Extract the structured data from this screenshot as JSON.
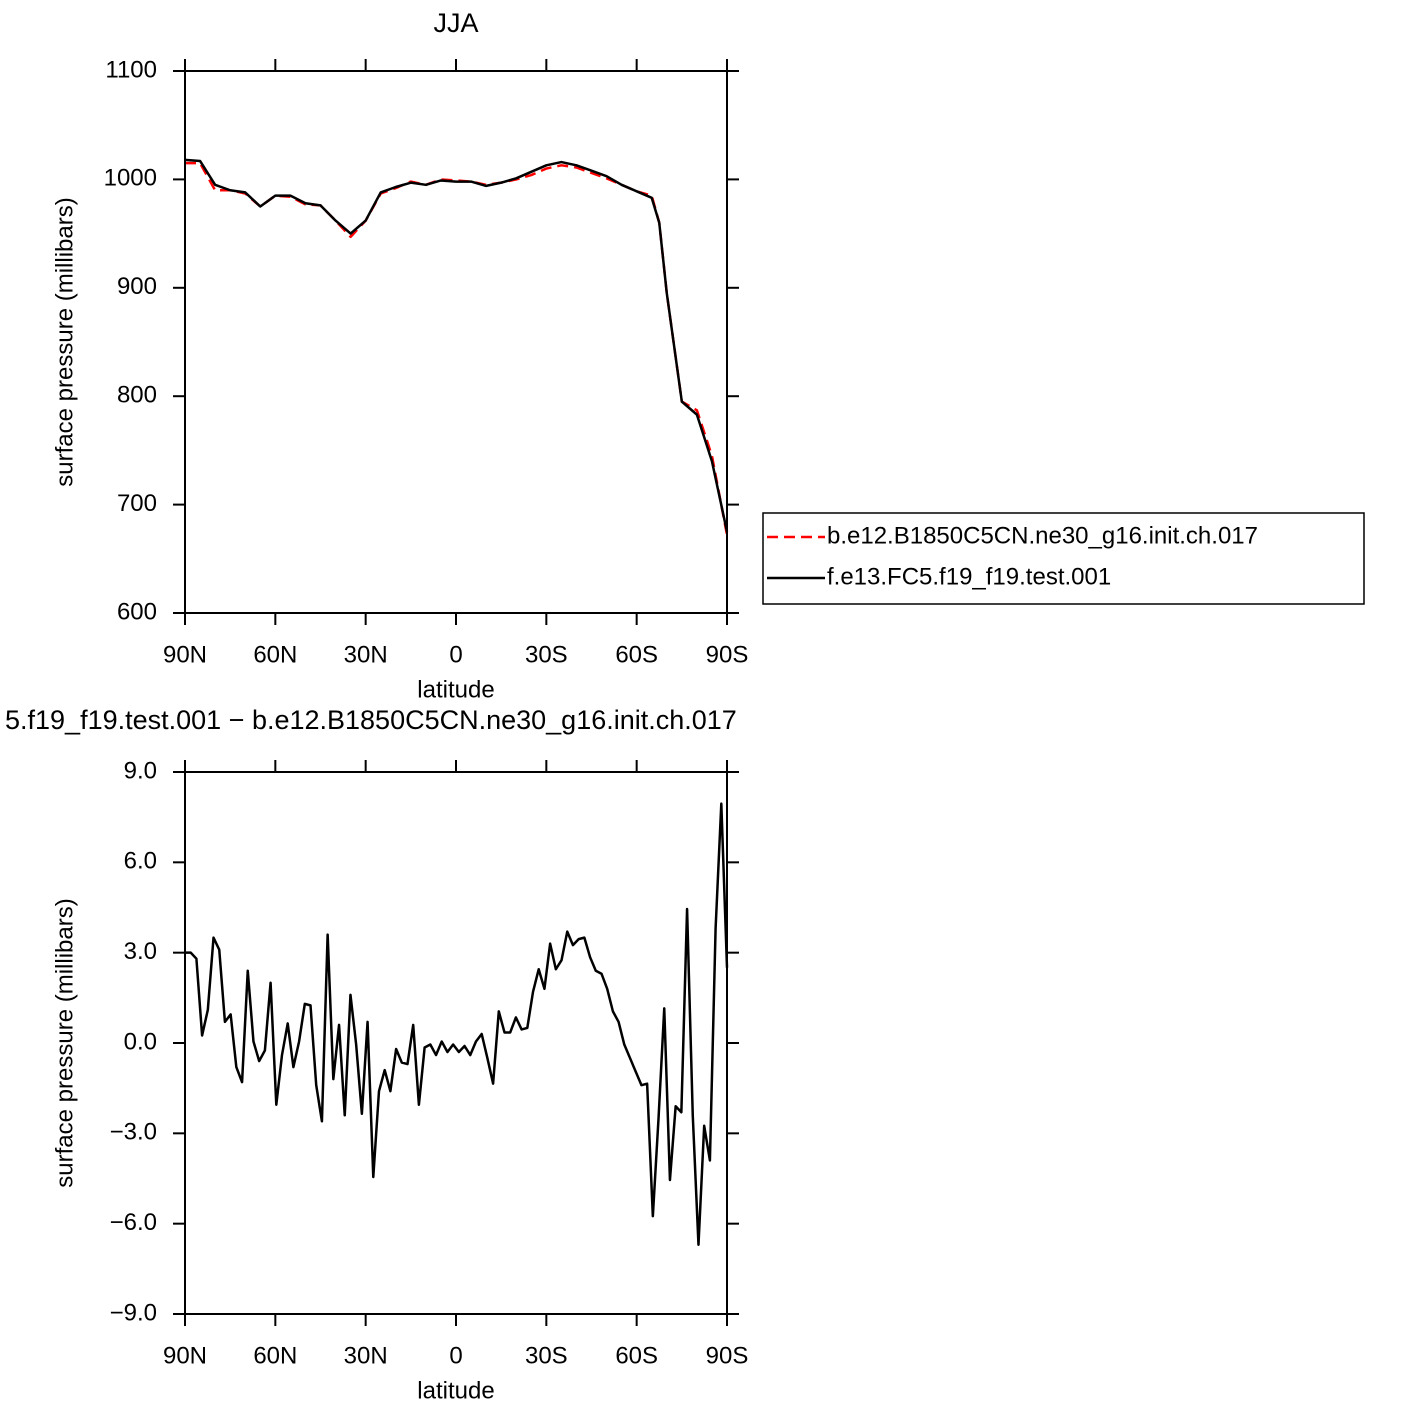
{
  "chart_data": [
    {
      "type": "line",
      "title": "JJA",
      "xlabel": "latitude",
      "ylabel": "surface pressure (millibars)",
      "x": [
        90,
        85,
        80,
        75,
        70,
        65,
        60,
        55,
        50,
        45,
        40,
        35,
        30,
        25,
        20,
        15,
        10,
        5,
        0,
        -5,
        -10,
        -15,
        -20,
        -25,
        -30,
        -35,
        -40,
        -45,
        -50,
        -55,
        -60,
        -65,
        -67.5,
        -70,
        -75,
        -80,
        -85,
        -90
      ],
      "xlim": [
        90,
        -90
      ],
      "xticks": [
        {
          "value": 90,
          "label": "90N"
        },
        {
          "value": 60,
          "label": "60N"
        },
        {
          "value": 30,
          "label": "30N"
        },
        0,
        {
          "value": -30,
          "label": "30S"
        },
        {
          "value": -60,
          "label": "60S"
        },
        {
          "value": -90,
          "label": "90S"
        }
      ],
      "ylim": [
        600,
        1100
      ],
      "yticks": [
        600,
        700,
        800,
        900,
        1000,
        1100
      ],
      "legend": "right",
      "series": [
        {
          "name": "b.e12.B1850C5CN.ne30_g16.init.ch.017",
          "color": "#ff0000",
          "dashed": true,
          "values": [
            1015,
            1015,
            990,
            990,
            987,
            975,
            985,
            984,
            977,
            976,
            962,
            947,
            962,
            987,
            992,
            998,
            995,
            1000,
            999,
            998,
            995,
            997,
            1000,
            1004,
            1010,
            1013,
            1011,
            1006,
            1001,
            995,
            989,
            985,
            960,
            895,
            795,
            787,
            745,
            672
          ]
        },
        {
          "name": "f.e13.FC5.f19_f19.test.001",
          "color": "#000000",
          "dashed": false,
          "values": [
            1018,
            1017,
            995,
            990,
            988,
            975,
            985,
            985,
            978,
            976,
            962,
            950,
            962,
            988,
            993,
            997,
            995,
            999,
            998,
            998,
            994,
            997,
            1001,
            1007,
            1013,
            1016,
            1013,
            1008,
            1003,
            995,
            989,
            983,
            960,
            895,
            795,
            783,
            740,
            675
          ]
        }
      ]
    },
    {
      "type": "line",
      "title": "5.f19_f19.test.001 − b.e12.B1850C5CN.ne30_g16.init.ch.017",
      "xlabel": "latitude",
      "ylabel": "surface pressure (millibars)",
      "x": [
        90,
        88.11,
        86.21,
        84.32,
        82.42,
        80.53,
        78.63,
        76.74,
        74.84,
        72.95,
        71.05,
        69.16,
        67.26,
        65.37,
        63.47,
        61.58,
        59.68,
        57.79,
        55.89,
        54.0,
        52.11,
        50.21,
        48.32,
        46.42,
        44.53,
        42.63,
        40.74,
        38.84,
        36.95,
        35.05,
        33.16,
        31.26,
        29.37,
        27.47,
        25.58,
        23.68,
        21.79,
        19.89,
        18.0,
        16.11,
        14.21,
        12.32,
        10.42,
        8.53,
        6.63,
        4.74,
        2.84,
        0.95,
        -0.95,
        -2.84,
        -4.74,
        -6.63,
        -8.53,
        -10.42,
        -12.32,
        -14.21,
        -16.11,
        -18.0,
        -19.89,
        -21.79,
        -23.68,
        -25.58,
        -27.47,
        -29.37,
        -31.26,
        -33.16,
        -35.05,
        -36.95,
        -38.84,
        -40.74,
        -42.63,
        -44.53,
        -46.42,
        -48.32,
        -50.21,
        -52.11,
        -54.0,
        -55.89,
        -57.79,
        -59.68,
        -61.58,
        -63.47,
        -65.37,
        -67.26,
        -69.16,
        -71.05,
        -72.95,
        -74.84,
        -76.74,
        -78.63,
        -80.53,
        -82.42,
        -84.32,
        -86.21,
        -88.11,
        -90
      ],
      "values": [
        3.0,
        3.0,
        2.8,
        0.25,
        1.1,
        3.5,
        3.1,
        0.7,
        0.95,
        -0.8,
        -1.3,
        2.4,
        0.05,
        -0.6,
        -0.25,
        2.0,
        -2.05,
        -0.4,
        0.65,
        -0.8,
        0.05,
        1.3,
        1.25,
        -1.4,
        -2.6,
        3.6,
        -1.2,
        0.6,
        -2.4,
        1.6,
        -0.05,
        -2.35,
        0.7,
        -4.45,
        -1.6,
        -0.9,
        -1.6,
        -0.2,
        -0.65,
        -0.7,
        0.6,
        -2.05,
        -0.15,
        -0.05,
        -0.4,
        0.05,
        -0.3,
        -0.05,
        -0.3,
        -0.1,
        -0.4,
        0.05,
        0.3,
        -0.5,
        -1.35,
        1.05,
        0.35,
        0.35,
        0.85,
        0.45,
        0.5,
        1.7,
        2.45,
        1.8,
        3.3,
        2.45,
        2.75,
        3.7,
        3.25,
        3.45,
        3.5,
        2.85,
        2.4,
        2.3,
        1.8,
        1.05,
        0.7,
        -0.05,
        -0.5,
        -0.95,
        -1.4,
        -1.35,
        -5.75,
        -2.5,
        1.15,
        -4.55,
        -2.1,
        -2.3,
        4.45,
        -2.4,
        -6.7,
        -2.75,
        -3.9,
        3.8,
        7.95,
        2.5
      ],
      "color": "#000000",
      "xlim": [
        90,
        -90
      ],
      "xticks": [
        {
          "value": 90,
          "label": "90N"
        },
        {
          "value": 60,
          "label": "60N"
        },
        {
          "value": 30,
          "label": "30N"
        },
        0,
        {
          "value": -30,
          "label": "30S"
        },
        {
          "value": -60,
          "label": "60S"
        },
        {
          "value": -90,
          "label": "90S"
        }
      ],
      "ylim": [
        -9,
        9
      ],
      "yticks": [
        {
          "value": -9,
          "label": "−9.0"
        },
        {
          "value": -6,
          "label": "−6.0"
        },
        {
          "value": -3,
          "label": "−3.0"
        },
        {
          "value": 0,
          "label": "0.0"
        },
        {
          "value": 3,
          "label": "3.0"
        },
        {
          "value": 6,
          "label": "6.0"
        },
        {
          "value": 9,
          "label": "9.0"
        }
      ]
    }
  ]
}
